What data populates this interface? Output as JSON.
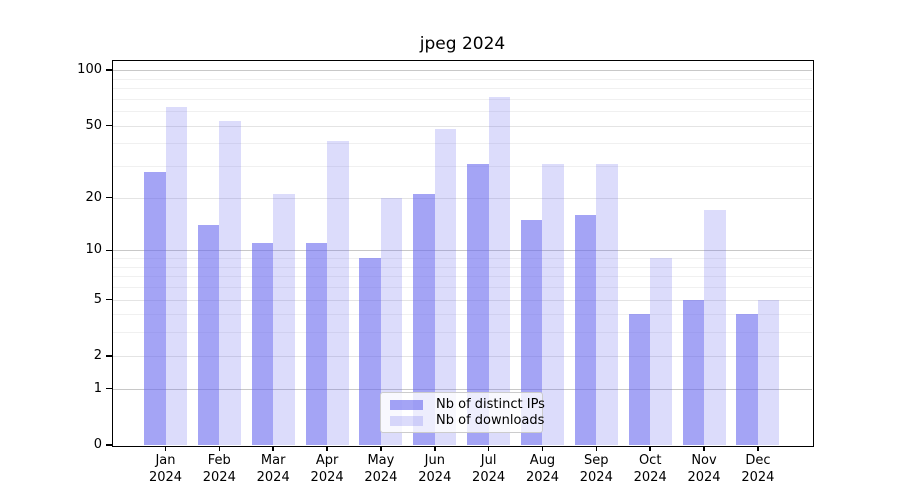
{
  "title": "jpeg 2024",
  "colors": {
    "bar_ips": "rgba(104,104,238,0.60)",
    "bar_downloads": "rgba(104,104,238,0.23)",
    "grid_major": "#c8c8c8",
    "grid_mid": "#e4e4e4",
    "grid_minor": "#f0f0f0",
    "axis": "#000000",
    "legend_border": "#cccccc",
    "legend_bg": "rgba(255,255,255,0.8)"
  },
  "chart_data": {
    "type": "bar",
    "title": "jpeg 2024",
    "categories": [
      "Jan 2024",
      "Feb 2024",
      "Mar 2024",
      "Apr 2024",
      "May 2024",
      "Jun 2024",
      "Jul 2024",
      "Aug 2024",
      "Sep 2024",
      "Oct 2024",
      "Nov 2024",
      "Dec 2024"
    ],
    "x_tick_months": [
      "Jan",
      "Feb",
      "Mar",
      "Apr",
      "May",
      "Jun",
      "Jul",
      "Aug",
      "Sep",
      "Oct",
      "Nov",
      "Dec"
    ],
    "x_tick_year": "2024",
    "series": [
      {
        "name": "Nb of distinct IPs",
        "values": [
          28,
          14,
          11,
          11,
          9,
          21,
          31,
          15,
          16,
          4,
          5,
          4
        ]
      },
      {
        "name": "Nb of downloads",
        "values": [
          63,
          53,
          21,
          41,
          20,
          48,
          72,
          31,
          31,
          9,
          17,
          5
        ]
      }
    ],
    "xlabel": "",
    "ylabel": "",
    "y_axis": {
      "scale": "log10(1+v)",
      "ticks": [
        100,
        50,
        20,
        10,
        5,
        2,
        1,
        0
      ],
      "major_gridlines": [
        100,
        10,
        1
      ],
      "labeled_minor_gridlines": [
        50,
        20,
        5,
        2
      ],
      "minor_gridlines": [
        90,
        80,
        70,
        60,
        40,
        30,
        9,
        8,
        7,
        6,
        4,
        3
      ],
      "ylim": [
        0,
        112
      ]
    },
    "grid": true,
    "legend_position": "lower center"
  }
}
